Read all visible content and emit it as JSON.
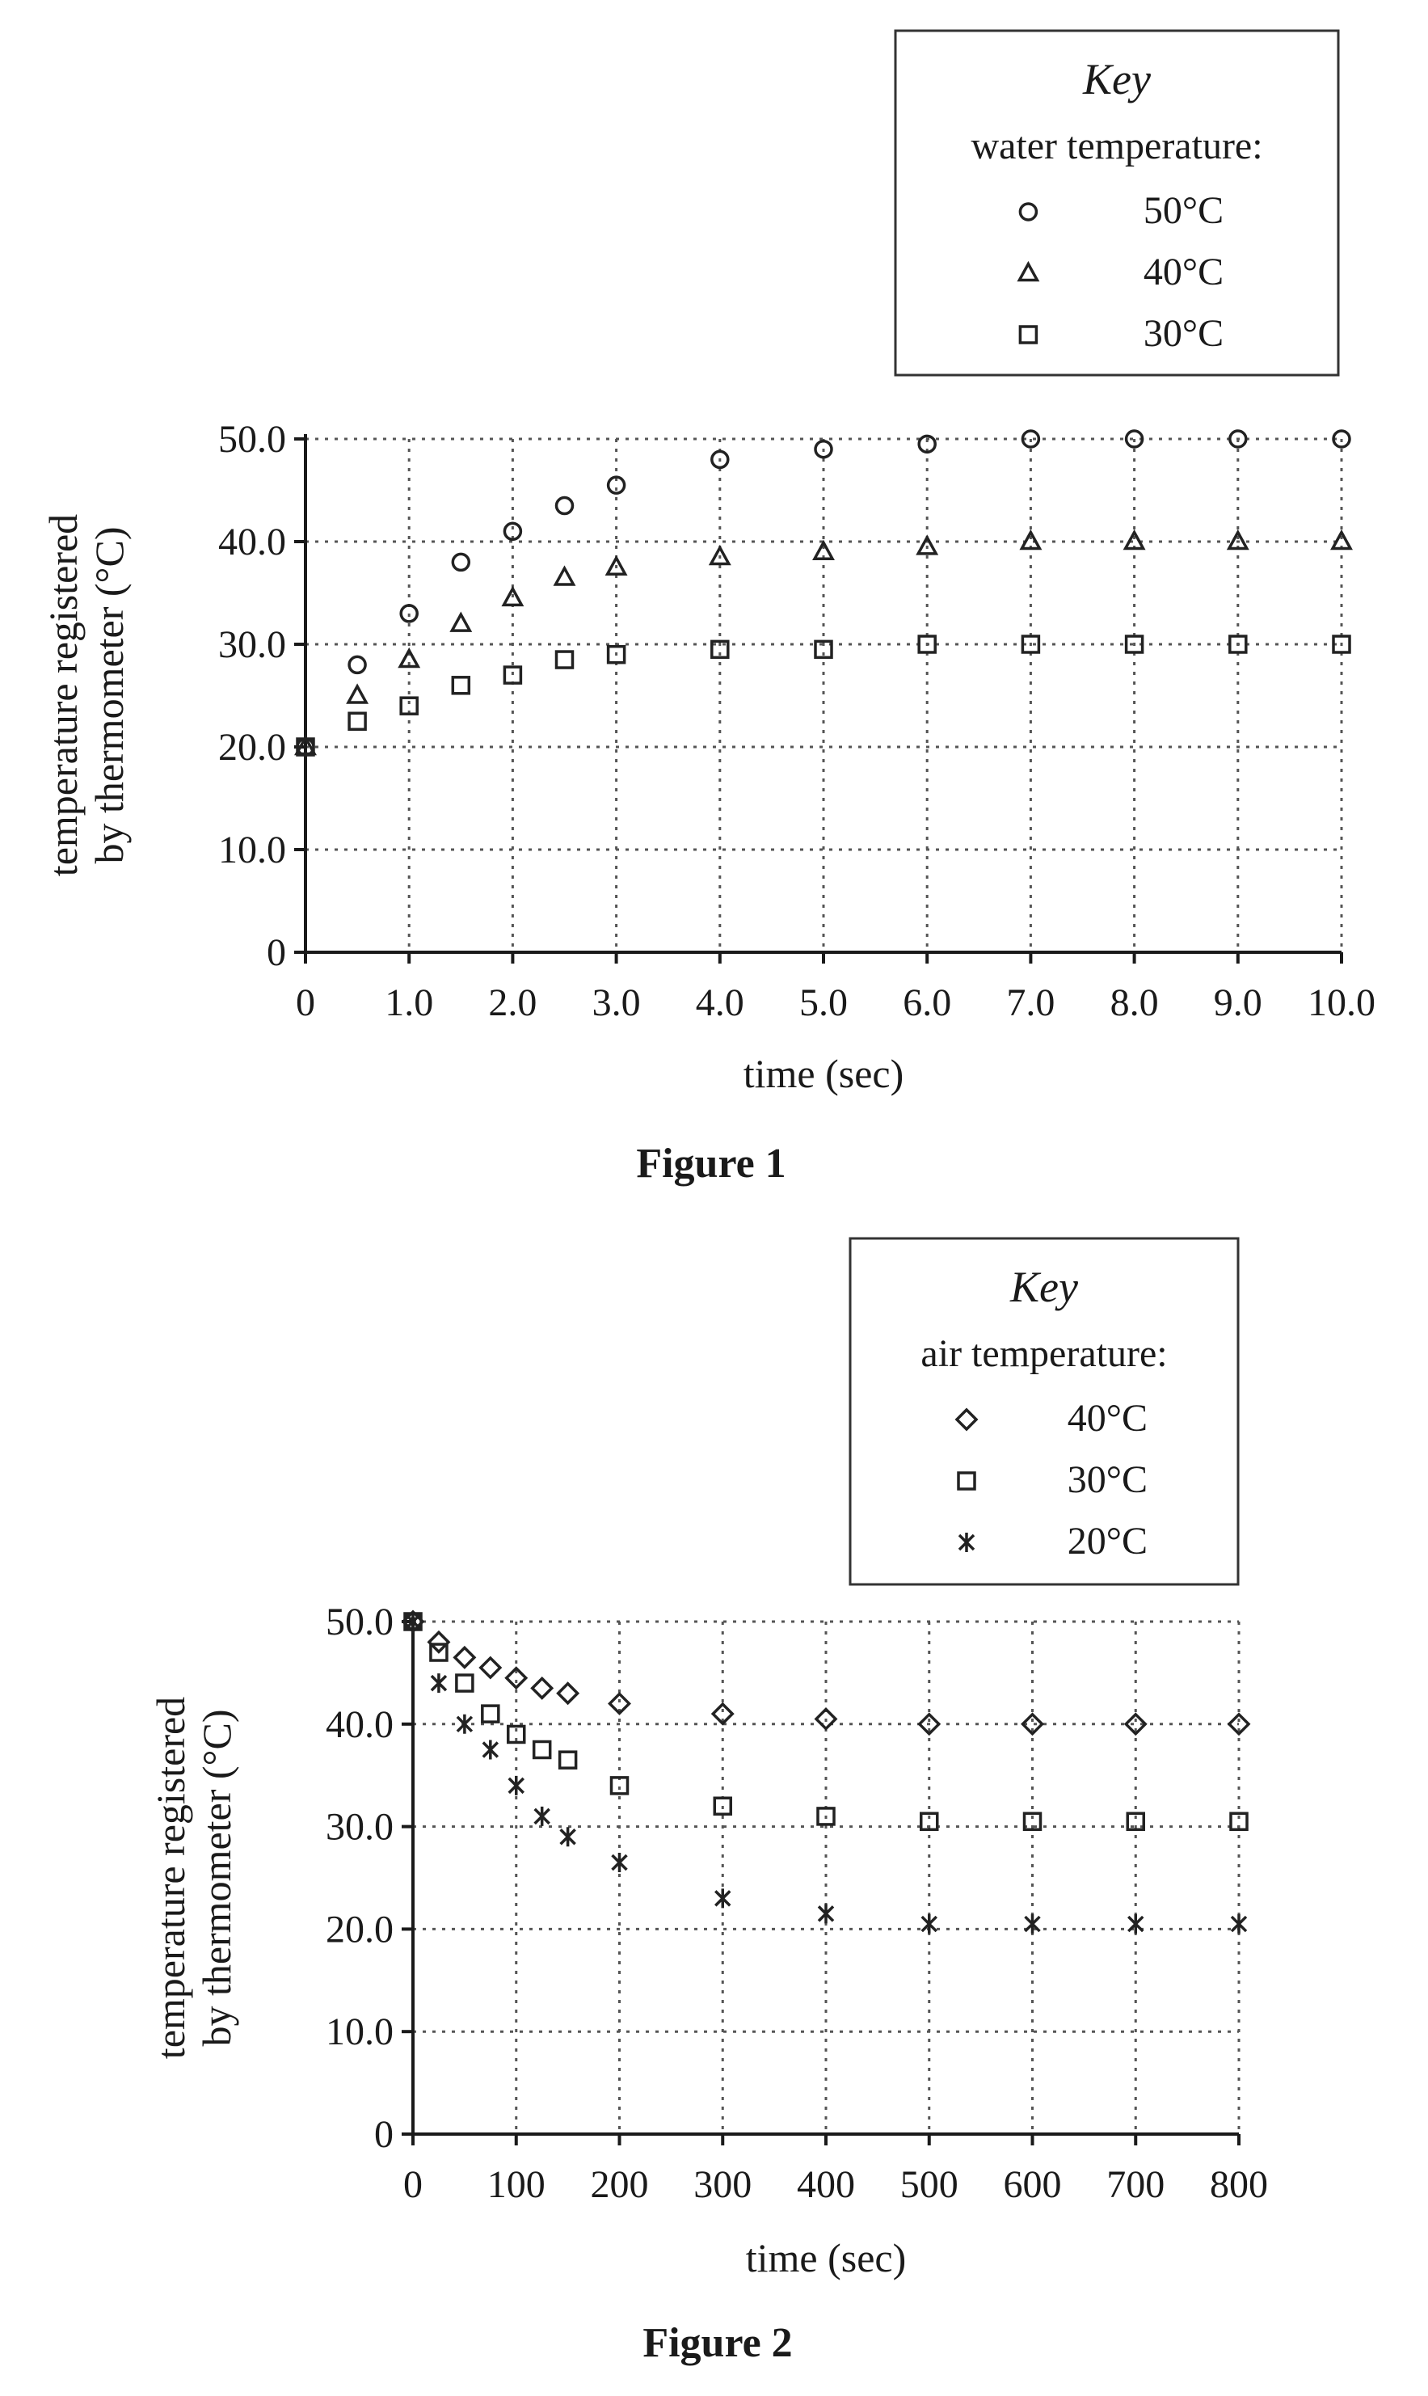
{
  "chart_data": [
    {
      "type": "scatter",
      "caption": "Figure 1",
      "xlabel": "time (sec)",
      "ylabel_lines": [
        "temperature registered",
        "by thermometer (°C)"
      ],
      "xlim": [
        0,
        10
      ],
      "ylim": [
        0,
        50
      ],
      "x_ticks": [
        0,
        1,
        2,
        3,
        4,
        5,
        6,
        7,
        8,
        9,
        10
      ],
      "x_tick_labels": [
        "0",
        "1.0",
        "2.0",
        "3.0",
        "4.0",
        "5.0",
        "6.0",
        "7.0",
        "8.0",
        "9.0",
        "10.0"
      ],
      "y_ticks": [
        0,
        10,
        20,
        30,
        40,
        50
      ],
      "y_tick_labels": [
        "0",
        "10.0",
        "20.0",
        "30.0",
        "40.0",
        "50.0"
      ],
      "grid": true,
      "legend_position": "top-right",
      "key": {
        "title": "Key",
        "subtitle": "water temperature:",
        "entries": [
          {
            "marker": "circle",
            "label": "50°C"
          },
          {
            "marker": "triangle",
            "label": "40°C"
          },
          {
            "marker": "square",
            "label": "30°C"
          }
        ]
      },
      "series": [
        {
          "marker": "circle",
          "x": [
            0,
            0.5,
            1,
            1.5,
            2,
            2.5,
            3,
            4,
            5,
            6,
            7,
            8,
            9,
            10
          ],
          "y": [
            20,
            28,
            33,
            38,
            41,
            43.5,
            45.5,
            48,
            49,
            49.5,
            50,
            50,
            50,
            50
          ]
        },
        {
          "marker": "triangle",
          "x": [
            0,
            0.5,
            1,
            1.5,
            2,
            2.5,
            3,
            4,
            5,
            6,
            7,
            8,
            9,
            10
          ],
          "y": [
            20,
            25,
            28.5,
            32,
            34.5,
            36.5,
            37.5,
            38.5,
            39,
            39.5,
            40,
            40,
            40,
            40
          ]
        },
        {
          "marker": "square",
          "x": [
            0,
            0.5,
            1,
            1.5,
            2,
            2.5,
            3,
            4,
            5,
            6,
            7,
            8,
            9,
            10
          ],
          "y": [
            20,
            22.5,
            24,
            26,
            27,
            28.5,
            29,
            29.5,
            29.5,
            30,
            30,
            30,
            30,
            30
          ]
        }
      ]
    },
    {
      "type": "scatter",
      "caption": "Figure 2",
      "xlabel": "time (sec)",
      "ylabel_lines": [
        "temperature registered",
        "by thermometer (°C)"
      ],
      "xlim": [
        0,
        800
      ],
      "ylim": [
        0,
        50
      ],
      "x_ticks": [
        0,
        100,
        200,
        300,
        400,
        500,
        600,
        700,
        800
      ],
      "x_tick_labels": [
        "0",
        "100",
        "200",
        "300",
        "400",
        "500",
        "600",
        "700",
        "800"
      ],
      "y_ticks": [
        0,
        10,
        20,
        30,
        40,
        50
      ],
      "y_tick_labels": [
        "0",
        "10.0",
        "20.0",
        "30.0",
        "40.0",
        "50.0"
      ],
      "grid": true,
      "legend_position": "top-right",
      "key": {
        "title": "Key",
        "subtitle": "air temperature:",
        "entries": [
          {
            "marker": "diamond",
            "label": "40°C"
          },
          {
            "marker": "square",
            "label": "30°C"
          },
          {
            "marker": "star",
            "label": "20°C"
          }
        ]
      },
      "series": [
        {
          "marker": "diamond",
          "x": [
            0,
            25,
            50,
            75,
            100,
            125,
            150,
            200,
            300,
            400,
            500,
            600,
            700,
            800
          ],
          "y": [
            50,
            48,
            46.5,
            45.5,
            44.5,
            43.5,
            43,
            42,
            41,
            40.5,
            40,
            40,
            40,
            40
          ]
        },
        {
          "marker": "square",
          "x": [
            0,
            25,
            50,
            75,
            100,
            125,
            150,
            200,
            300,
            400,
            500,
            600,
            700,
            800
          ],
          "y": [
            50,
            47,
            44,
            41,
            39,
            37.5,
            36.5,
            34,
            32,
            31,
            30.5,
            30.5,
            30.5,
            30.5
          ]
        },
        {
          "marker": "star",
          "x": [
            0,
            25,
            50,
            75,
            100,
            125,
            150,
            200,
            300,
            400,
            500,
            600,
            700,
            800
          ],
          "y": [
            50,
            44,
            40,
            37.5,
            34,
            31,
            29,
            26.5,
            23,
            21.5,
            20.5,
            20.5,
            20.5,
            20.5
          ]
        }
      ]
    }
  ]
}
